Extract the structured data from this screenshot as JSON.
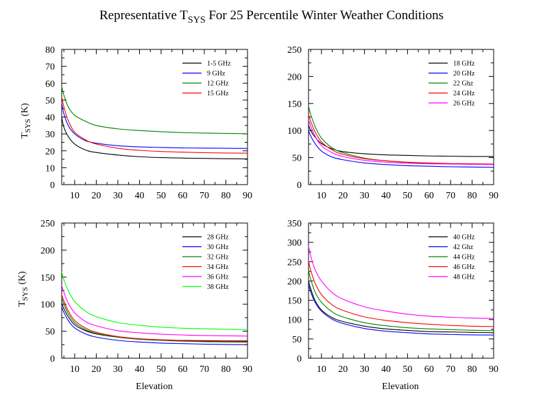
{
  "title": {
    "prefix": "Representative T",
    "sub": "SYS",
    "suffix": " For 25 Percentile Winter Weather Conditions"
  },
  "y_axis_label": {
    "main": "T",
    "sub": "SYS",
    "suffix": " (K)"
  },
  "x_axis_label": "Elevation",
  "chart_data": [
    {
      "type": "line",
      "xlim": [
        4,
        90
      ],
      "ylim": [
        0,
        80
      ],
      "xticks": [
        10,
        20,
        30,
        40,
        50,
        60,
        70,
        80,
        90
      ],
      "yticks": [
        0,
        10,
        20,
        30,
        40,
        50,
        60,
        70,
        80
      ],
      "grid": false,
      "legend": "top-right",
      "ylabel": "TSYS (K)",
      "xlabel": "",
      "series": [
        {
          "name": "1-5 GHz",
          "color": "#000000",
          "x": [
            4,
            5,
            7,
            10,
            15,
            20,
            30,
            40,
            50,
            60,
            70,
            80,
            90
          ],
          "y": [
            40,
            34,
            28.5,
            24,
            20.5,
            19,
            17.5,
            16.5,
            16,
            15.7,
            15.5,
            15.3,
            15.2
          ]
        },
        {
          "name": "9 GHz",
          "color": "#0000ff",
          "x": [
            4,
            5,
            7,
            10,
            15,
            20,
            30,
            40,
            50,
            60,
            70,
            80,
            90
          ],
          "y": [
            48,
            42,
            35,
            30,
            26,
            24.5,
            23,
            22.3,
            22,
            21.7,
            21.6,
            21.5,
            21.4
          ]
        },
        {
          "name": "12 GHz",
          "color": "#008000",
          "x": [
            4,
            5,
            7,
            10,
            15,
            20,
            30,
            40,
            50,
            60,
            70,
            80,
            90
          ],
          "y": [
            58,
            53,
            46,
            41,
            37.5,
            35,
            33,
            32,
            31.3,
            30.8,
            30.5,
            30.3,
            30.1
          ]
        },
        {
          "name": "15 GHz",
          "color": "#ff0000",
          "x": [
            4,
            5,
            7,
            10,
            15,
            20,
            30,
            40,
            50,
            60,
            70,
            80,
            90
          ],
          "y": [
            52,
            46,
            38,
            31,
            26.5,
            24,
            21.5,
            20.3,
            19.6,
            19.2,
            18.9,
            18.7,
            18.6
          ]
        }
      ]
    },
    {
      "type": "line",
      "xlim": [
        4,
        90
      ],
      "ylim": [
        0,
        250
      ],
      "xticks": [
        10,
        20,
        30,
        40,
        50,
        60,
        70,
        80,
        90
      ],
      "yticks": [
        0,
        50,
        100,
        150,
        200,
        250
      ],
      "grid": false,
      "legend": "top-right",
      "ylabel": "",
      "xlabel": "",
      "series": [
        {
          "name": "18 GHz",
          "color": "#000000",
          "x": [
            4,
            5,
            7,
            10,
            15,
            20,
            30,
            40,
            50,
            60,
            70,
            80,
            90
          ],
          "y": [
            110,
            100,
            88,
            76,
            66,
            61,
            57,
            55,
            54,
            53,
            52.5,
            52,
            52
          ]
        },
        {
          "name": "20 GHz",
          "color": "#0000ff",
          "x": [
            4,
            5,
            7,
            10,
            15,
            20,
            30,
            40,
            50,
            60,
            70,
            80,
            90
          ],
          "y": [
            100,
            90,
            76,
            62,
            51,
            46,
            40,
            37,
            35,
            34,
            33,
            32.5,
            32
          ]
        },
        {
          "name": "22 Ghz",
          "color": "#008000",
          "x": [
            4,
            5,
            7,
            10,
            15,
            20,
            30,
            40,
            50,
            60,
            70,
            80,
            90
          ],
          "y": [
            145,
            130,
            108,
            86,
            68,
            59,
            49,
            44,
            41,
            39.5,
            38.5,
            38,
            37.5
          ]
        },
        {
          "name": "24 GHz",
          "color": "#ff0000",
          "x": [
            4,
            5,
            7,
            10,
            15,
            20,
            30,
            40,
            50,
            60,
            70,
            80,
            90
          ],
          "y": [
            130,
            117,
            98,
            79,
            64,
            56,
            48,
            44,
            41.5,
            40,
            39,
            38.5,
            38
          ]
        },
        {
          "name": "26 GHz",
          "color": "#ff00ff",
          "x": [
            4,
            5,
            7,
            10,
            15,
            20,
            30,
            40,
            50,
            60,
            70,
            80,
            90
          ],
          "y": [
            120,
            108,
            90,
            72,
            59,
            52,
            45,
            41.5,
            39.5,
            38.5,
            38,
            37.5,
            37
          ]
        }
      ]
    },
    {
      "type": "line",
      "xlim": [
        4,
        90
      ],
      "ylim": [
        0,
        250
      ],
      "xticks": [
        10,
        20,
        30,
        40,
        50,
        60,
        70,
        80,
        90
      ],
      "yticks": [
        0,
        50,
        100,
        150,
        200,
        250
      ],
      "grid": false,
      "legend": "top-right",
      "ylabel": "TSYS (K)",
      "xlabel": "Elevation",
      "series": [
        {
          "name": "28 GHz",
          "color": "#000000",
          "x": [
            4,
            5,
            7,
            10,
            15,
            20,
            30,
            40,
            50,
            60,
            70,
            80,
            90
          ],
          "y": [
            102,
            92,
            77,
            62,
            51,
            45,
            39,
            36,
            34,
            33,
            32.5,
            32,
            32
          ]
        },
        {
          "name": "30 GHz",
          "color": "#0000ff",
          "x": [
            4,
            5,
            7,
            10,
            15,
            20,
            30,
            40,
            50,
            60,
            70,
            80,
            90
          ],
          "y": [
            95,
            85,
            70,
            56,
            45,
            39,
            33,
            30,
            28,
            27,
            26,
            25.5,
            25
          ]
        },
        {
          "name": "32 GHz",
          "color": "#008000",
          "x": [
            4,
            5,
            7,
            10,
            15,
            20,
            30,
            40,
            50,
            60,
            70,
            80,
            90
          ],
          "y": [
            112,
            100,
            83,
            66,
            53,
            46,
            39,
            35,
            33,
            31.5,
            30.5,
            30,
            29.5
          ]
        },
        {
          "name": "34 GHz",
          "color": "#ff0000",
          "x": [
            4,
            5,
            7,
            10,
            15,
            20,
            30,
            40,
            50,
            60,
            70,
            80,
            90
          ],
          "y": [
            118,
            106,
            88,
            70,
            56,
            48,
            40,
            36,
            34,
            32.5,
            31.5,
            31,
            30.5
          ]
        },
        {
          "name": "36 GHz",
          "color": "#ff00ff",
          "x": [
            4,
            5,
            7,
            10,
            15,
            20,
            30,
            40,
            50,
            60,
            70,
            80,
            90
          ],
          "y": [
            135,
            122,
            102,
            84,
            68,
            60,
            51,
            47,
            44.5,
            43,
            42,
            41.5,
            41
          ]
        },
        {
          "name": "38 GHz",
          "color": "#00ff00",
          "x": [
            4,
            5,
            7,
            10,
            15,
            20,
            30,
            40,
            50,
            60,
            70,
            80,
            90
          ],
          "y": [
            160,
            145,
            125,
            105,
            87,
            77,
            66,
            61,
            57.5,
            55.5,
            54.5,
            53.5,
            53
          ]
        }
      ]
    },
    {
      "type": "line",
      "xlim": [
        4,
        90
      ],
      "ylim": [
        0,
        350
      ],
      "xticks": [
        10,
        20,
        30,
        40,
        50,
        60,
        70,
        80,
        90
      ],
      "yticks": [
        0,
        50,
        100,
        150,
        200,
        250,
        300,
        350
      ],
      "grid": false,
      "legend": "top-right",
      "ylabel": "",
      "xlabel": "Elevation",
      "series": [
        {
          "name": "40 GHz",
          "color": "#000000",
          "x": [
            4,
            5,
            7,
            10,
            15,
            20,
            30,
            40,
            50,
            60,
            70,
            80,
            90
          ],
          "y": [
            200,
            180,
            150,
            125,
            105,
            95,
            83,
            76,
            72,
            69,
            68,
            67,
            66
          ]
        },
        {
          "name": "42 Ghz",
          "color": "#0000ff",
          "x": [
            4,
            5,
            7,
            10,
            15,
            20,
            30,
            40,
            50,
            60,
            70,
            80,
            90
          ],
          "y": [
            190,
            172,
            145,
            122,
            101,
            90,
            77,
            70,
            66,
            63,
            61.5,
            60.5,
            60
          ]
        },
        {
          "name": "44 GHz",
          "color": "#008000",
          "x": [
            4,
            5,
            7,
            10,
            15,
            20,
            30,
            40,
            50,
            60,
            70,
            80,
            90
          ],
          "y": [
            228,
            205,
            172,
            145,
            120,
            107,
            92,
            84,
            79,
            76,
            74,
            72.5,
            71.5
          ]
        },
        {
          "name": "46 GHz",
          "color": "#ff0000",
          "x": [
            4,
            5,
            7,
            10,
            15,
            20,
            30,
            40,
            50,
            60,
            70,
            80,
            90
          ],
          "y": [
            252,
            228,
            195,
            165,
            138,
            124,
            107,
            98,
            92,
            88,
            85,
            83,
            82
          ]
        },
        {
          "name": "48 GHz",
          "color": "#ff00ff",
          "x": [
            4,
            5,
            7,
            10,
            15,
            20,
            30,
            40,
            50,
            60,
            70,
            80,
            90
          ],
          "y": [
            290,
            265,
            230,
            200,
            170,
            153,
            133,
            122,
            114,
            109,
            106,
            104,
            103
          ]
        }
      ]
    }
  ]
}
